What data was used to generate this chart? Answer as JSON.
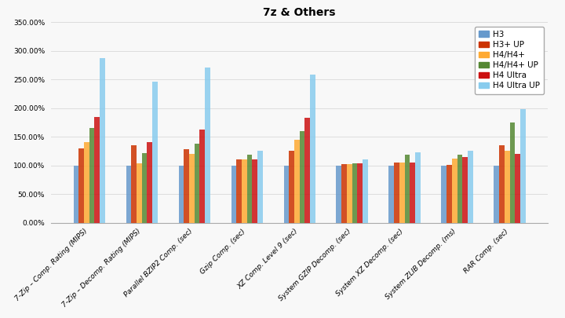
{
  "title": "7z & Others",
  "categories": [
    "7-Zip – Comp. Rating (MIPS)",
    "7-Zip – Decomp. Rating (MIPS)",
    "Parallel BZIP2 Comp. (sec)",
    "Gzip Comp. (sec)",
    "XZ Comp. Level 9 (sec)",
    "System GZIP Decomp. (sec)",
    "System XZ Decomp. (sec)",
    "System ZLIB Decomp. (ms)",
    "RAR Comp. (sec)"
  ],
  "series": {
    "H3": [
      100,
      100,
      100,
      100,
      100,
      100,
      100,
      100,
      100
    ],
    "H3+ UP": [
      130,
      135,
      128,
      110,
      125,
      102,
      105,
      101,
      135
    ],
    "H4/H4+": [
      140,
      104,
      120,
      110,
      145,
      102,
      105,
      112,
      125
    ],
    "H4/H4+ UP": [
      165,
      121,
      138,
      118,
      160,
      104,
      118,
      118,
      175
    ],
    "H4 Ultra": [
      185,
      140,
      162,
      110,
      183,
      104,
      105,
      115,
      120
    ],
    "H4 Ultra UP": [
      288,
      246,
      271,
      125,
      258,
      110,
      123,
      125,
      198
    ]
  },
  "colors": {
    "H3": "#6699CC",
    "H3+ UP": "#CC3300",
    "H4/H4+": "#FFAA33",
    "H4/H4+ UP": "#558833",
    "H4 Ultra": "#CC1111",
    "H4 Ultra UP": "#88CCEE"
  },
  "ylim": [
    0,
    350
  ],
  "yticks": [
    0,
    50,
    100,
    150,
    200,
    250,
    300,
    350
  ],
  "background_color": "#f8f8f8",
  "grid_color": "#dddddd",
  "title_fontsize": 10,
  "tick_fontsize": 6.5,
  "legend_fontsize": 7.5,
  "bar_width": 0.1,
  "bar_alpha": 0.85
}
